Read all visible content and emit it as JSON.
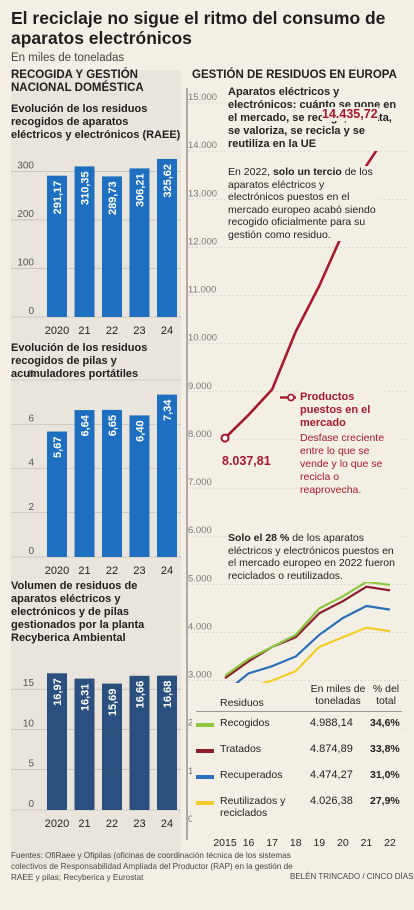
{
  "header": {
    "title": "El reciclaje no sigue el ritmo del consumo de aparatos electrónicos",
    "subtitle": "En miles de toneladas"
  },
  "left": {
    "section_title": "RECOGIDA Y GESTIÓN NACIONAL DOMÉSTICA"
  },
  "right": {
    "section_title": "GESTIÓN DE RESIDUOS EN EUROPA",
    "top_title": "Aparatos eléctricos y electrónicos: cuánto se pone en el mercado, se recoge, se trata, se valoriza, se recicla y se reutiliza en la UE",
    "note_pre": "En 2022, ",
    "note_bold": "solo un tercio",
    "note_post": " de los aparatos eléctricos y electrónicos puestos en el mercado europeo acabó siendo recogido oficialmente para su gestión como residuo.",
    "series_label": "Productos puestos en el mercado",
    "gap_note": "Desfase creciente entre lo que se vende y lo que se recicla o reaprovecha.",
    "start_label": "8.037,81",
    "end_label": "14.435,72",
    "bottom_note_bold": "Solo el 28 %",
    "bottom_note_rest": " de los aparatos eléctricos y electrónicos puestos en el mercado europeo en 2022 fueron reciclados o reutilizados.",
    "table_head": [
      "Residuos",
      "En miles de toneladas",
      "% del total"
    ],
    "table_rows": [
      {
        "label": "Recogidos",
        "value": "4.988,14",
        "pct": "34,6%",
        "color": "#8dc63f"
      },
      {
        "label": "Tratados",
        "value": "4.874,89",
        "pct": "33,8%",
        "color": "#8b1e2e"
      },
      {
        "label": "Recuperados",
        "value": "4.474,27",
        "pct": "31,0%",
        "color": "#2a6fba"
      },
      {
        "label": "Reutilizados y reciclados",
        "value": "4.026,38",
        "pct": "27,9%",
        "color": "#f2cc27"
      }
    ]
  },
  "footer": {
    "sources": "Fuentes: OfiRaee y Ofipilas (oficinas de coordinación técnica de los sistemas colectivos de Responsabilidad Ampliada del Productor (RAP) en la gestión de RAEE y pilas; Recyberica y Eurostat",
    "credit": "BELÉN TRINCADO / CINCO DÍAS"
  },
  "chart_data": [
    {
      "type": "bar",
      "title": "Evolución de los residuos recogidos de aparatos eléctricos y electrónicos (RAEE)",
      "categories": [
        "2020",
        "21",
        "22",
        "23",
        "24"
      ],
      "values": [
        291.17,
        310.35,
        289.73,
        306.21,
        325.62
      ],
      "labels": [
        "291,17",
        "310,35",
        "289,73",
        "306,21",
        "325,62"
      ],
      "yticks": [
        "0",
        "100",
        "200",
        "300"
      ],
      "ylim": [
        0,
        340
      ],
      "color": "#1f6fc0"
    },
    {
      "type": "bar",
      "title": "Evolución de los residuos recogidos de pilas y acumuladores portátiles",
      "categories": [
        "2020",
        "21",
        "22",
        "23",
        "24"
      ],
      "values": [
        5.67,
        6.64,
        6.65,
        6.4,
        7.34
      ],
      "labels": [
        "5,67",
        "6,64",
        "6,65",
        "6,40",
        "7,34"
      ],
      "yticks": [
        "0",
        "2",
        "4",
        "6",
        "8"
      ],
      "ylim": [
        0,
        8
      ],
      "color": "#1f6fc0"
    },
    {
      "type": "bar",
      "title": "Volumen de residuos de aparatos eléctricos y electrónicos y de pilas gestionados por la planta Recyberica Ambiental",
      "categories": [
        "2020",
        "21",
        "22",
        "23",
        "24"
      ],
      "values": [
        16.97,
        16.31,
        15.69,
        16.66,
        16.68
      ],
      "labels": [
        "16,97",
        "16,31",
        "15,69",
        "16,66",
        "16,68"
      ],
      "yticks": [
        "0",
        "5",
        "10",
        "15"
      ],
      "ylim": [
        0,
        18
      ],
      "color": "#2b4f7e"
    },
    {
      "type": "line",
      "x": [
        "2015",
        "16",
        "17",
        "18",
        "19",
        "20",
        "21",
        "22"
      ],
      "yticks": [
        "15.000",
        "14.000",
        "13.000",
        "12.000",
        "11.000",
        "10.000",
        "9.000",
        "8.000",
        "7.000",
        "6.000",
        "5.000",
        "4.000",
        "3.000",
        "2.000",
        "1.000",
        "0"
      ],
      "ylim": [
        0,
        15000
      ],
      "series": [
        {
          "name": "Productos puestos en el mercado",
          "color": "#a6192e",
          "values": [
            8037.81,
            8520,
            9050,
            10250,
            11200,
            12300,
            13700,
            14435.72
          ]
        },
        {
          "name": "Recogidos",
          "color": "#8dc63f",
          "values": [
            3100,
            3450,
            3700,
            3950,
            4500,
            4750,
            5050,
            4988.14
          ]
        },
        {
          "name": "Tratados",
          "color": "#8b1e2e",
          "values": [
            3050,
            3400,
            3700,
            3900,
            4400,
            4650,
            4950,
            4874.89
          ]
        },
        {
          "name": "Recuperados",
          "color": "#2a6fba",
          "values": [
            2750,
            3150,
            3300,
            3500,
            3950,
            4300,
            4550,
            4474.27
          ]
        },
        {
          "name": "Reutilizados y reciclados",
          "color": "#f2cc27",
          "values": [
            2450,
            2850,
            3000,
            3200,
            3700,
            3900,
            4100,
            4026.38
          ]
        }
      ]
    }
  ]
}
